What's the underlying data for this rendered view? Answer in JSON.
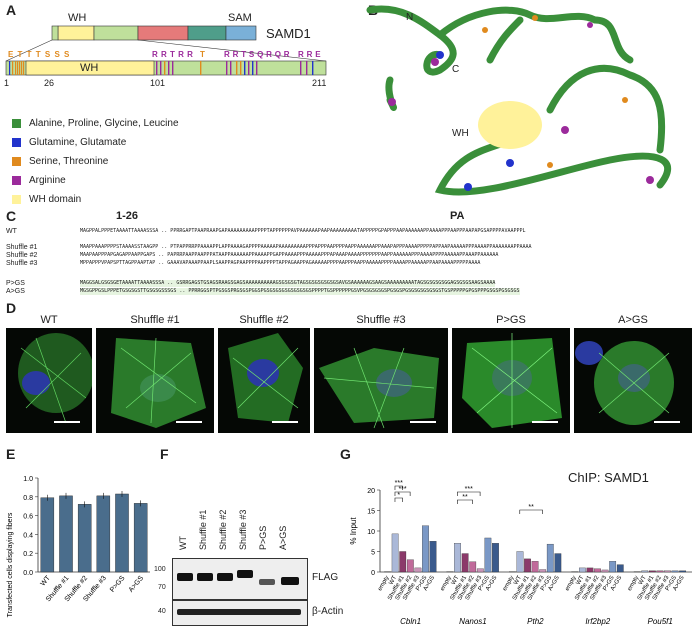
{
  "panels": {
    "A": "A",
    "B": "B",
    "C": "C",
    "D": "D",
    "E": "E",
    "F": "F",
    "G": "G"
  },
  "colors": {
    "ala": "#3a8f3a",
    "gln": "#2233cc",
    "ser": "#e08a1e",
    "arg": "#9b2a9b",
    "wh": "#fff29a",
    "red": "#e57a7a",
    "teal": "#4f9e8a",
    "blue": "#7ab0d8",
    "bar": "#4a6d8c"
  },
  "domainA": {
    "wh_label": "WH",
    "sam_label": "SAM",
    "protein": "SAMD1",
    "seq_left": "E T T T S S S",
    "seq_mid": "R R T R R",
    "seq_t": "T",
    "seq_right1": "R R T S Q R Q R",
    "seq_right2": "R R E",
    "wh_inner": "WH",
    "ticks": [
      "1",
      "26",
      "101",
      "211"
    ]
  },
  "legend": [
    {
      "label": "Alanine, Proline, Glycine, Leucine",
      "color": "#3a8f3a"
    },
    {
      "label": "Glutamine, Glutamate",
      "color": "#2233cc"
    },
    {
      "label": "Serine, Threonine",
      "color": "#e08a1e"
    },
    {
      "label": "Arginine",
      "color": "#9b2a9b"
    },
    {
      "label": "WH domain",
      "color": "#fff29a"
    }
  ],
  "structureB": {
    "n": "N",
    "c": "C",
    "wh": "WH"
  },
  "alignmentC": {
    "header_left": "1-26",
    "header_right": "PA",
    "rows": [
      {
        "label": "WT",
        "seq": "MAGPPALPPPETAAAATTAAAASSSA .. PPRRGAPTPAAPRAAPGAPAAAAAAAAAPPPPTAPPPPPPAVPAAAAAAPAAPAAAAAAAAATAPPPPPGPAPPPAAPAAAAAAPPAAAAPPPAAPPPAAPAPGSAPPPPAVAAPPPL"
      },
      {
        "label": "Shuffle #1",
        "seq": "MAAPPAAAPPPPSTAAAASSTAAGPP .. PTPAPPRRPPAAAAPPLAPPAAAAGAPPPPAAAAAPAAAAAAAAAPPPAPPPAAPPPPAAPPAAAAAAPPAAAPAPPPAAAAPPPPPAPPAAPAAAAAPPPAAAAPPAAAAAAAPPAAAA"
      },
      {
        "label": "Shuffle #2",
        "seq": "MAAPAAPPPAPGAGAPPAAPPGAPS .. PAPRRPAAPPAAPPPATAAPPAAAAAAPPAAAAPPGAPPAAAAPPPAAAAAPPPAPAAAPAAAAPPPPPPPAAPPAAAAAAPPPAAAAPPPPAAAAAPPAAAPPAAAAAA"
      },
      {
        "label": "Shuffle #3",
        "seq": "MPPAPPPVPAPSPTTAGPPAAPTAP .. GAAAVAPAAAPPAAPLSAAPPAGPAAPPPPAAPPPPTAPPAGAAPPAGAAAAAPPPPAAPPPAAPPAAAAAPPPPAAAAPPAAAAAPPAAPAAAAPPPPPAAAA"
      },
      {
        "label": "P>GS",
        "seq": "MAGGSALGSGSGETAAAATTAAAASSSA .. GSRRGAGSTGSAGSRAAGSGAGSAAAAAAAAAAGSGSGSGTAGSGSGSGSGSGSAVGSAAAAAAGSAAGSAAAAAAAAATAGSGSGSGSGGAGSGSGSAAGSAAAA"
      },
      {
        "label": "A>GS",
        "seq": "MGSGPPGSLPPPETGSGSGSTTGSGSGSSSGS .. PPRRGGSPTPGSGSPRGSGSPGGSPGSGSGSGSGSGSGSGSPPPPTGSPPPPPPGSVPGSGSGSGSPGSGSPGSGSGSGSGSGSTGSPPPPPGPGSPPPGSGSPGSGSGS"
      }
    ]
  },
  "imagesD": {
    "titles": [
      "WT",
      "Shuffle #1",
      "Shuffle #2",
      "Shuffle #3",
      "P>GS",
      "A>GS"
    ]
  },
  "chartE": {
    "ylabel": "Transfected cells displaying fibers",
    "yticks": [
      "0.0",
      "0.2",
      "0.4",
      "0.6",
      "0.8",
      "1.0"
    ],
    "categories": [
      "WT",
      "Shuffle #1",
      "Shuffle #2",
      "Shuffle #3",
      "P>GS",
      "A>GS"
    ]
  },
  "blotF": {
    "lanes": [
      "WT",
      "Shuffle #1",
      "Shuffle #2",
      "Shuffle #3",
      "P>GS",
      "A>GS"
    ],
    "markers": [
      "100",
      "70",
      "40"
    ],
    "flag": "FLAG",
    "actin": "β-Actin"
  },
  "chartG": {
    "title": "ChIP: SAMD1",
    "ylabel": "% Input",
    "yticks": [
      "0",
      "5",
      "10",
      "15",
      "20"
    ],
    "conditions": [
      "empty",
      "WT",
      "Shuffle #1",
      "Shuffle #2",
      "Shuffle #3",
      "P>GS",
      "A>GS"
    ],
    "genes": [
      "Cbln1",
      "Nanos1",
      "Pth2",
      "Irf2bp2",
      "Pou5f1"
    ],
    "sig": [
      "***",
      "***",
      "*",
      "***",
      "**",
      "**"
    ]
  },
  "chart_data": [
    {
      "type": "bar",
      "title": "",
      "xlabel": "",
      "ylabel": "Transfected cells displaying fibers",
      "ylim": [
        0,
        1.0
      ],
      "categories": [
        "WT",
        "Shuffle #1",
        "Shuffle #2",
        "Shuffle #3",
        "P>GS",
        "A>GS"
      ],
      "values": [
        0.79,
        0.81,
        0.72,
        0.81,
        0.83,
        0.73
      ]
    },
    {
      "type": "bar",
      "title": "ChIP: SAMD1",
      "xlabel": "",
      "ylabel": "% Input",
      "ylim": [
        0,
        20
      ],
      "categories": [
        "Cbln1",
        "Nanos1",
        "Pth2",
        "Irf2bp2",
        "Pou5f1"
      ],
      "series": [
        {
          "name": "empty",
          "values": [
            0.1,
            0.1,
            0.1,
            0.1,
            0.1
          ]
        },
        {
          "name": "WT",
          "values": [
            9.3,
            7.0,
            5.0,
            1.0,
            0.3
          ]
        },
        {
          "name": "Shuffle #1",
          "values": [
            5.0,
            4.5,
            3.2,
            1.0,
            0.3
          ]
        },
        {
          "name": "Shuffle #2",
          "values": [
            3.0,
            2.5,
            2.6,
            0.8,
            0.3
          ]
        },
        {
          "name": "Shuffle #3",
          "values": [
            1.0,
            0.8,
            0.6,
            0.5,
            0.3
          ]
        },
        {
          "name": "P>GS",
          "values": [
            11.3,
            8.3,
            6.8,
            2.6,
            0.3
          ]
        },
        {
          "name": "A>GS",
          "values": [
            7.5,
            7.0,
            4.5,
            1.8,
            0.3
          ]
        }
      ]
    }
  ]
}
